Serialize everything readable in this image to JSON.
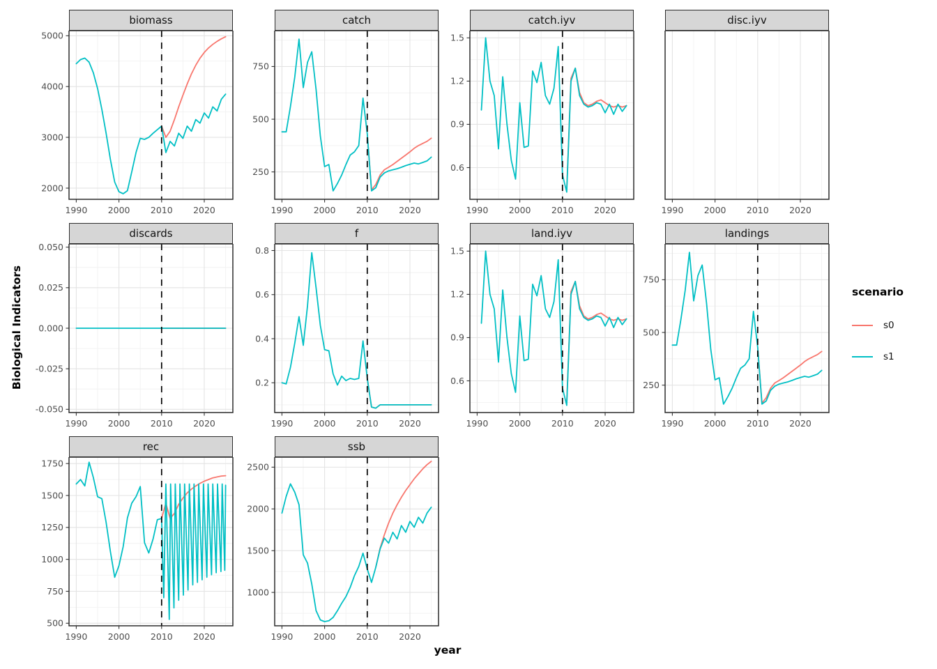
{
  "figure": {
    "xlabel": "year",
    "ylabel": "Biological Indicators",
    "legend": {
      "title": "scenario",
      "entries": [
        {
          "label": "s0",
          "color": "#F8766D"
        },
        {
          "label": "s1",
          "color": "#00BFC4"
        }
      ]
    }
  },
  "x_axis": {
    "range": [
      1988.3,
      2026.7
    ],
    "ticks": [
      1990,
      2000,
      2010,
      2020
    ],
    "tick_labels": [
      "1990",
      "2000",
      "2010",
      "2020"
    ]
  },
  "chart_data": [
    {
      "type": "line",
      "title": "biomass",
      "ylim": [
        1780,
        5100
      ],
      "yticks": [
        2000,
        3000,
        4000,
        5000
      ],
      "ytick_labels": [
        "2000",
        "3000",
        "4000",
        "5000"
      ],
      "vline": 2010,
      "series": [
        {
          "name": "s0",
          "color": "#F8766D",
          "x0": 2010,
          "y": [
            3220,
            3000,
            3120,
            3350,
            3600,
            3830,
            4050,
            4250,
            4420,
            4560,
            4670,
            4760,
            4830,
            4890,
            4940,
            4980
          ]
        },
        {
          "name": "s1",
          "color": "#00BFC4",
          "x0": 1990,
          "y": [
            4450,
            4530,
            4560,
            4480,
            4270,
            3960,
            3550,
            3080,
            2560,
            2120,
            1930,
            1890,
            1950,
            2320,
            2700,
            2980,
            2960,
            3000,
            3080,
            3150,
            3220,
            2700,
            2920,
            2830,
            3080,
            2980,
            3220,
            3120,
            3350,
            3280,
            3480,
            3380,
            3600,
            3520,
            3750,
            3850
          ]
        }
      ]
    },
    {
      "type": "line",
      "title": "catch",
      "ylim": [
        120,
        920
      ],
      "yticks": [
        250,
        500,
        750
      ],
      "ytick_labels": [
        "250",
        "500",
        "750"
      ],
      "vline": 2010,
      "series": [
        {
          "name": "s0",
          "color": "#F8766D",
          "x0": 2010,
          "y": [
            430,
            165,
            190,
            235,
            260,
            272,
            285,
            300,
            315,
            330,
            345,
            362,
            375,
            385,
            395,
            410
          ]
        },
        {
          "name": "s1",
          "color": "#00BFC4",
          "x0": 1990,
          "y": [
            440,
            440,
            560,
            700,
            880,
            650,
            770,
            820,
            640,
            420,
            275,
            285,
            160,
            195,
            235,
            285,
            330,
            345,
            375,
            600,
            430,
            160,
            175,
            225,
            245,
            255,
            260,
            265,
            272,
            280,
            286,
            292,
            288,
            295,
            302,
            320
          ]
        }
      ]
    },
    {
      "type": "line",
      "title": "catch.iyv",
      "ylim": [
        0.38,
        1.55
      ],
      "yticks": [
        0.6,
        0.9,
        1.2,
        1.5
      ],
      "ytick_labels": [
        "0.6",
        "0.9",
        "1.2",
        "1.5"
      ],
      "vline": 2010,
      "series": [
        {
          "name": "s0",
          "color": "#F8766D",
          "x0": 2011,
          "y": [
            0.45,
            1.22,
            1.29,
            1.12,
            1.05,
            1.03,
            1.04,
            1.06,
            1.07,
            1.05,
            1.03,
            1.02,
            1.03,
            1.02,
            1.03
          ]
        },
        {
          "name": "s1",
          "color": "#00BFC4",
          "x0": 1991,
          "y": [
            1.0,
            1.5,
            1.2,
            1.1,
            0.73,
            1.23,
            0.9,
            0.65,
            0.52,
            1.05,
            0.74,
            0.75,
            1.27,
            1.19,
            1.33,
            1.1,
            1.04,
            1.15,
            1.44,
            0.55,
            0.43,
            1.2,
            1.29,
            1.1,
            1.04,
            1.02,
            1.03,
            1.05,
            1.04,
            0.98,
            1.04,
            0.97,
            1.04,
            0.99,
            1.03
          ]
        }
      ]
    },
    {
      "type": "line",
      "title": "disc.iyv",
      "ylim": [
        0,
        1
      ],
      "yticks": [],
      "ytick_labels": [],
      "vline": null,
      "series": []
    },
    {
      "type": "line",
      "title": "discards",
      "ylim": [
        -0.052,
        0.052
      ],
      "yticks": [
        -0.05,
        -0.025,
        0,
        0.025,
        0.05
      ],
      "ytick_labels": [
        "-0.050",
        "-0.025",
        "0.000",
        "0.025",
        "0.050"
      ],
      "vline": 2010,
      "series": [
        {
          "name": "s0",
          "color": "#F8766D",
          "x0": 2010,
          "y": [
            0,
            0,
            0,
            0,
            0,
            0,
            0,
            0,
            0,
            0,
            0,
            0,
            0,
            0,
            0,
            0
          ]
        },
        {
          "name": "s1",
          "color": "#00BFC4",
          "x0": 1990,
          "y": [
            0,
            0,
            0,
            0,
            0,
            0,
            0,
            0,
            0,
            0,
            0,
            0,
            0,
            0,
            0,
            0,
            0,
            0,
            0,
            0,
            0,
            0,
            0,
            0,
            0,
            0,
            0,
            0,
            0,
            0,
            0,
            0,
            0,
            0,
            0,
            0
          ]
        }
      ]
    },
    {
      "type": "line",
      "title": "f",
      "ylim": [
        0.065,
        0.83
      ],
      "yticks": [
        0.2,
        0.4,
        0.6,
        0.8
      ],
      "ytick_labels": [
        "0.2",
        "0.4",
        "0.6",
        "0.8"
      ],
      "vline": 2010,
      "series": [
        {
          "name": "s0",
          "color": "#F8766D",
          "x0": 2010,
          "y": [
            0.22,
            0.09,
            0.085,
            0.1,
            0.1,
            0.1,
            0.1,
            0.1,
            0.1,
            0.1,
            0.1,
            0.1,
            0.1,
            0.1,
            0.1,
            0.1
          ]
        },
        {
          "name": "s1",
          "color": "#00BFC4",
          "x0": 1990,
          "y": [
            0.2,
            0.195,
            0.27,
            0.38,
            0.5,
            0.37,
            0.55,
            0.79,
            0.63,
            0.46,
            0.35,
            0.345,
            0.24,
            0.19,
            0.23,
            0.21,
            0.22,
            0.215,
            0.22,
            0.39,
            0.22,
            0.09,
            0.085,
            0.1,
            0.1,
            0.1,
            0.1,
            0.1,
            0.1,
            0.1,
            0.1,
            0.1,
            0.1,
            0.1,
            0.1,
            0.1
          ]
        }
      ]
    },
    {
      "type": "line",
      "title": "land.iyv",
      "ylim": [
        0.38,
        1.55
      ],
      "yticks": [
        0.6,
        0.9,
        1.2,
        1.5
      ],
      "ytick_labels": [
        "0.6",
        "0.9",
        "1.2",
        "1.5"
      ],
      "vline": 2010,
      "series": [
        {
          "name": "s0",
          "color": "#F8766D",
          "x0": 2011,
          "y": [
            0.45,
            1.22,
            1.29,
            1.12,
            1.05,
            1.03,
            1.04,
            1.06,
            1.07,
            1.05,
            1.03,
            1.02,
            1.03,
            1.02,
            1.03
          ]
        },
        {
          "name": "s1",
          "color": "#00BFC4",
          "x0": 1991,
          "y": [
            1.0,
            1.5,
            1.2,
            1.1,
            0.73,
            1.23,
            0.9,
            0.65,
            0.52,
            1.05,
            0.74,
            0.75,
            1.27,
            1.19,
            1.33,
            1.1,
            1.04,
            1.15,
            1.44,
            0.55,
            0.43,
            1.2,
            1.29,
            1.1,
            1.04,
            1.02,
            1.03,
            1.05,
            1.04,
            0.98,
            1.04,
            0.97,
            1.04,
            0.99,
            1.03
          ]
        }
      ]
    },
    {
      "type": "line",
      "title": "landings",
      "ylim": [
        120,
        920
      ],
      "yticks": [
        250,
        500,
        750
      ],
      "ytick_labels": [
        "250",
        "500",
        "750"
      ],
      "vline": 2010,
      "series": [
        {
          "name": "s0",
          "color": "#F8766D",
          "x0": 2010,
          "y": [
            430,
            165,
            190,
            235,
            260,
            272,
            285,
            300,
            315,
            330,
            345,
            362,
            375,
            385,
            395,
            410
          ]
        },
        {
          "name": "s1",
          "color": "#00BFC4",
          "x0": 1990,
          "y": [
            440,
            440,
            560,
            700,
            880,
            650,
            770,
            820,
            640,
            420,
            275,
            285,
            160,
            195,
            235,
            285,
            330,
            345,
            375,
            600,
            430,
            160,
            175,
            225,
            245,
            255,
            260,
            265,
            272,
            280,
            286,
            292,
            288,
            295,
            302,
            320
          ]
        }
      ]
    },
    {
      "type": "line",
      "title": "rec",
      "ylim": [
        480,
        1800
      ],
      "yticks": [
        500,
        750,
        1000,
        1250,
        1500,
        1750
      ],
      "ytick_labels": [
        "500",
        "750",
        "1000",
        "1250",
        "1500",
        "1750"
      ],
      "vline": 2010,
      "series": [
        {
          "name": "s0",
          "color": "#F8766D",
          "x0": 2010,
          "y": [
            1320,
            1440,
            1320,
            1360,
            1430,
            1480,
            1520,
            1550,
            1575,
            1595,
            1612,
            1625,
            1638,
            1645,
            1652,
            1655
          ]
        },
        {
          "name": "s1",
          "color": "#00BFC4",
          "x": [
            1990,
            1991,
            1992,
            1993,
            1994,
            1995,
            1996,
            1997,
            1998,
            1999,
            2000,
            2001,
            2002,
            2003,
            2004,
            2005,
            2006,
            2007,
            2008,
            2009,
            2010,
            2010.5,
            2011,
            2011.8,
            2012.1,
            2012.9,
            2013.2,
            2014,
            2014.3,
            2015.1,
            2015.4,
            2016.2,
            2016.5,
            2017.3,
            2017.6,
            2018.4,
            2018.7,
            2019.5,
            2019.8,
            2020.6,
            2020.9,
            2021.7,
            2022,
            2022.8,
            2023.1,
            2023.9,
            2024.2,
            2024.8,
            2025
          ],
          "y": [
            1590,
            1625,
            1575,
            1760,
            1640,
            1490,
            1475,
            1290,
            1060,
            860,
            950,
            1100,
            1325,
            1440,
            1490,
            1570,
            1130,
            1050,
            1160,
            1310,
            1320,
            700,
            1590,
            530,
            1590,
            620,
            1590,
            680,
            1590,
            720,
            1590,
            760,
            1590,
            800,
            1590,
            820,
            1590,
            840,
            1590,
            860,
            1590,
            880,
            1590,
            895,
            1590,
            905,
            1590,
            915,
            1580
          ]
        }
      ]
    },
    {
      "type": "line",
      "title": "ssb",
      "ylim": [
        600,
        2620
      ],
      "yticks": [
        1000,
        1500,
        2000,
        2500
      ],
      "ytick_labels": [
        "1000",
        "1500",
        "2000",
        "2500"
      ],
      "vline": 2010,
      "series": [
        {
          "name": "s0",
          "color": "#F8766D",
          "x0": 2012,
          "y": [
            1300,
            1530,
            1690,
            1830,
            1950,
            2050,
            2140,
            2220,
            2290,
            2360,
            2420,
            2480,
            2530,
            2570
          ]
        },
        {
          "name": "s1",
          "color": "#00BFC4",
          "x0": 1990,
          "y": [
            1950,
            2150,
            2300,
            2200,
            2050,
            1450,
            1350,
            1100,
            780,
            670,
            650,
            660,
            700,
            780,
            870,
            950,
            1060,
            1200,
            1310,
            1470,
            1280,
            1120,
            1300,
            1520,
            1650,
            1590,
            1720,
            1640,
            1800,
            1720,
            1850,
            1780,
            1900,
            1830,
            1950,
            2020
          ]
        }
      ]
    }
  ]
}
